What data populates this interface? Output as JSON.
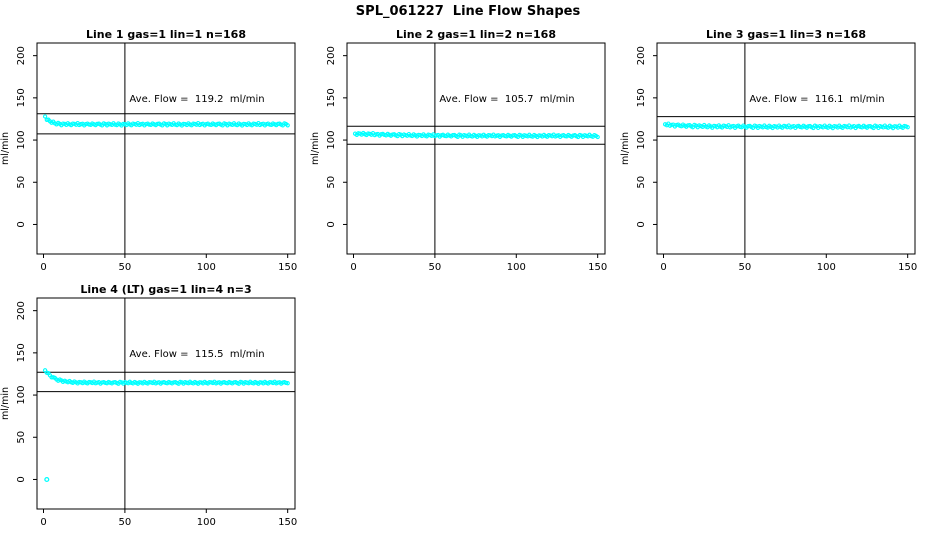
{
  "title": "SPL_061227  Line Flow Shapes",
  "chart_data": {
    "type": "scatter",
    "title": "SPL_061227  Line Flow Shapes",
    "ylabel": "ml/min",
    "xlabel": "",
    "x_ticks": [
      0,
      50,
      100,
      150
    ],
    "y_ticks": [
      0,
      50,
      100,
      150,
      200
    ],
    "xlim": [
      -4,
      154.5
    ],
    "ylim": [
      -35,
      215
    ],
    "grid": false,
    "legend": "none",
    "colors": {
      "points": "#00FFFF",
      "axis": "#000000",
      "background": "#FFFFFF"
    },
    "noise_pattern": [
      0.31,
      -0.82,
      0.52,
      0.08,
      -0.44,
      0.91,
      -0.18,
      -0.63,
      0.72,
      -0.02,
      -0.95,
      0.41,
      0.22,
      -0.55,
      0.83,
      -0.12,
      -0.71,
      0.62,
      0.33,
      -0.28,
      0.97,
      -0.52,
      0.14,
      0.47,
      -0.86,
      0.26,
      0.66,
      -0.16,
      -0.42,
      0.76,
      0.04,
      -0.66,
      0.36,
      0.56,
      -0.24,
      -0.92,
      0.81
    ],
    "panels": [
      {
        "title": "Line 1 gas=1 lin=1 n=168",
        "annotation": "Ave. Flow =  119.2  ml/min",
        "ave_flow_ml_min": 119.2,
        "n": 168,
        "ref_lines": {
          "upper": 131.1,
          "lower": 107.3,
          "vertical_x": 50
        },
        "series": {
          "x_start": 1,
          "x_end": 150,
          "initial": 127.5,
          "plateau": 118.6,
          "tau": 3.2,
          "noise_amp": 1.4,
          "noise_offset": 0
        },
        "extra_points": []
      },
      {
        "title": "Line 2 gas=1 lin=2 n=168",
        "annotation": "Ave. Flow =  105.7  ml/min",
        "ave_flow_ml_min": 105.7,
        "n": 168,
        "ref_lines": {
          "upper": 116.3,
          "lower": 95.1,
          "vertical_x": 50
        },
        "series": {
          "x_start": 1,
          "x_end": 150,
          "initial": 107.6,
          "plateau": 104.9,
          "tau": 28,
          "noise_amp": 1.4,
          "noise_offset": 9
        },
        "extra_points": []
      },
      {
        "title": "Line 3 gas=1 lin=3 n=168",
        "annotation": "Ave. Flow =  116.1  ml/min",
        "ave_flow_ml_min": 116.1,
        "n": 168,
        "ref_lines": {
          "upper": 127.7,
          "lower": 104.5,
          "vertical_x": 50
        },
        "series": {
          "x_start": 1,
          "x_end": 150,
          "initial": 118.2,
          "plateau": 115.7,
          "tau": 18,
          "noise_amp": 1.6,
          "noise_offset": 18
        },
        "extra_points": []
      },
      {
        "title": "Line 4 (LT) gas=1 lin=4 n=3",
        "annotation": "Ave. Flow =  115.5  ml/min",
        "ave_flow_ml_min": 115.5,
        "n": 3,
        "ref_lines": {
          "upper": 127.1,
          "lower": 104.0,
          "vertical_x": 50
        },
        "series": {
          "x_start": 1,
          "x_end": 150,
          "initial": 129.5,
          "plateau": 114.6,
          "tau": 5.5,
          "noise_amp": 1.2,
          "noise_offset": 27
        },
        "extra_points": [
          [
            2,
            0
          ]
        ]
      }
    ]
  }
}
